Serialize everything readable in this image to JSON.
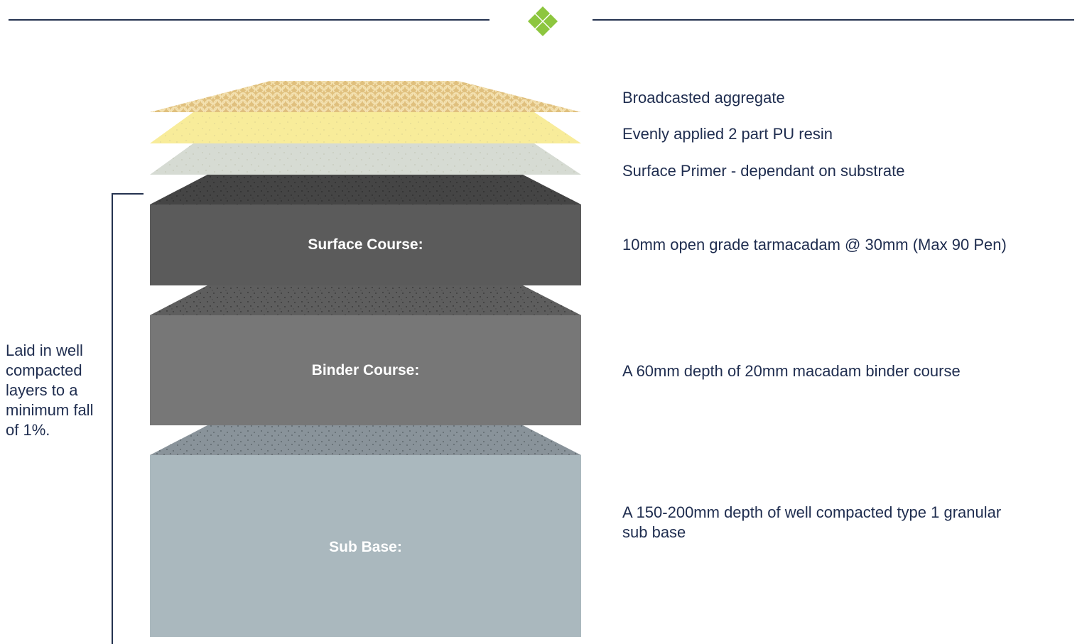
{
  "colors": {
    "rule": "#24324f",
    "accent": "#8dc63f",
    "aggregate": "#e0c07e",
    "resin": "#f8ec9a",
    "primer": "#d6dbd3",
    "surface_top": "#454545",
    "surface_face": "#5b5b5b",
    "binder_top": "#5e5e5e",
    "binder_face": "#777777",
    "subbase_top": "#89939a",
    "subbase_face": "#aab8be"
  },
  "header": {
    "divider_icon": "diamond-icon"
  },
  "layers": [
    {
      "id": "aggregate",
      "label": "",
      "description": "Broadcasted aggregate"
    },
    {
      "id": "resin",
      "label": "",
      "description": "Evenly applied 2 part PU resin"
    },
    {
      "id": "primer",
      "label": "",
      "description": "Surface Primer - dependant on substrate"
    },
    {
      "id": "surface-course",
      "label": "Surface Course:",
      "description": "10mm open grade tarmacadam @ 30mm (Max 90 Pen)"
    },
    {
      "id": "binder-course",
      "label": "Binder Course:",
      "description": "A 60mm depth of 20mm macadam binder course"
    },
    {
      "id": "sub-base",
      "label": "Sub Base:",
      "description": "A 150-200mm depth of well compacted type 1 granular sub base"
    }
  ],
  "side_note": "Laid in well compacted layers to a minimum fall of 1%."
}
